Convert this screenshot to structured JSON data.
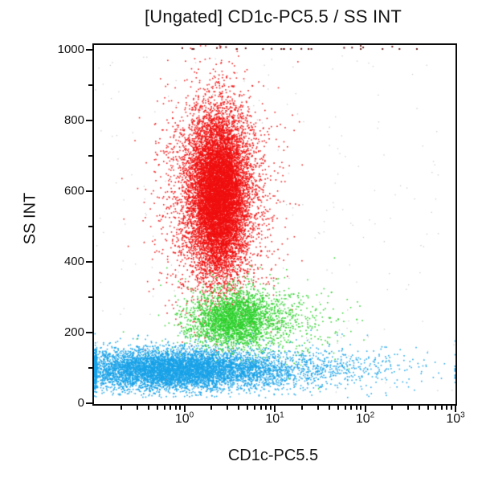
{
  "title": "[Ungated] CD1c-PC5.5 / SS INT",
  "axes": {
    "x": {
      "label": "CD1c-PC5.5",
      "scale": "log10",
      "decades": [
        -1,
        0,
        1,
        2
      ],
      "minor_mantissas": [
        2,
        3,
        4,
        5,
        6,
        7,
        8,
        9
      ],
      "major_ticks": [
        {
          "log": 0,
          "base": "10",
          "exp": "0"
        },
        {
          "log": 1,
          "base": "10",
          "exp": "1"
        },
        {
          "log": 2,
          "base": "10",
          "exp": "2"
        },
        {
          "log": 3,
          "base": "10",
          "exp": "3"
        }
      ]
    },
    "y": {
      "label": "SS INT",
      "min": 0,
      "max": 1000,
      "major_ticks": [
        {
          "value": 0,
          "label": "0"
        },
        {
          "value": 200,
          "label": "200"
        },
        {
          "value": 400,
          "label": "400"
        },
        {
          "value": 600,
          "label": "600"
        },
        {
          "value": 800,
          "label": "800"
        },
        {
          "value": 1000,
          "label": "1000"
        }
      ],
      "minor_ticks": [
        100,
        300,
        500,
        700,
        900
      ]
    }
  },
  "chart_data": {
    "type": "scatter",
    "subtype": "flow-cytometry-dot-plot",
    "title": "[Ungated] CD1c-PC5.5 / SS INT",
    "xlabel": "CD1c-PC5.5",
    "ylabel": "SS INT",
    "x_scale": "log10",
    "x_range": [
      0.1,
      1000
    ],
    "y_range": [
      0,
      1000
    ],
    "grid": false,
    "legend": "none",
    "seed": 20240613,
    "populations": [
      {
        "name": "background-debris",
        "color": "#9a9a9a",
        "alpha": 0.5,
        "dot_size": 1.3,
        "components": [
          {
            "count": 240,
            "x_log_range": [
              -1,
              3
            ],
            "y_range": [
              25,
              995
            ]
          }
        ]
      },
      {
        "name": "granulocytes-red",
        "color": "#f01010",
        "alpha": 0.9,
        "dot_size": 1.6,
        "components": [
          {
            "count": 9500,
            "x_log_mean": 0.38,
            "x_log_sigma": 0.155,
            "y_mean": 592,
            "y_sigma": 112
          },
          {
            "count": 2800,
            "x_log_mean": 0.36,
            "x_log_sigma": 0.3,
            "y_mean": 575,
            "y_sigma": 148
          }
        ]
      },
      {
        "name": "monocytes-green",
        "color": "#2bd22b",
        "alpha": 0.9,
        "dot_size": 1.6,
        "components": [
          {
            "count": 2300,
            "x_log_mean": 0.54,
            "x_log_sigma": 0.23,
            "y_mean": 238,
            "y_sigma": 40
          },
          {
            "count": 750,
            "x_log_mean": 0.82,
            "x_log_sigma": 0.45,
            "y_mean": 232,
            "y_sigma": 55
          }
        ]
      },
      {
        "name": "lymphocytes-blue",
        "color": "#18a2e8",
        "alpha": 0.9,
        "dot_size": 1.6,
        "components": [
          {
            "count": 5200,
            "x_log_mean": -0.22,
            "x_log_sigma": 0.5,
            "y_mean": 96,
            "y_sigma": 29
          },
          {
            "count": 1800,
            "x_log_mean": 0.45,
            "x_log_sigma": 0.6,
            "y_mean": 92,
            "y_sigma": 27
          },
          {
            "count": 520,
            "x_log_mean": 1.55,
            "x_log_sigma": 0.7,
            "y_mean": 96,
            "y_sigma": 33
          }
        ]
      },
      {
        "name": "saturated-events-top",
        "color": "#5a1010",
        "alpha": 0.95,
        "dot_size": 2.0,
        "components": [
          {
            "count": 26,
            "x_log_range": [
              -0.15,
              2.75
            ],
            "y_mean": 1002,
            "y_sigma": 5
          }
        ]
      }
    ]
  }
}
